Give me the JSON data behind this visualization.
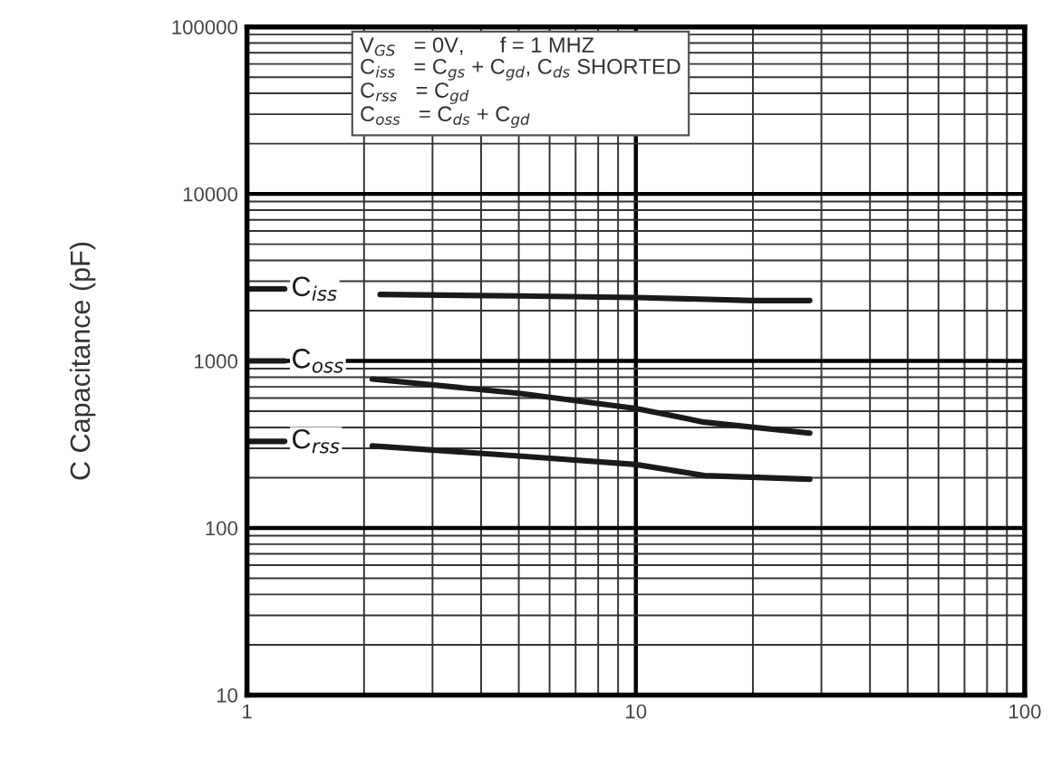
{
  "chart_data": {
    "type": "line",
    "ylabel": "C Capacitance (pF)",
    "log": "xy",
    "grid": true,
    "legend": false,
    "marker": "none",
    "line_style": "solid",
    "xlim": [
      1,
      100
    ],
    "xticks": [
      1,
      10,
      100
    ],
    "ylim": [
      10,
      100000
    ],
    "yticks": [
      10,
      100,
      1000,
      10000,
      100000
    ],
    "series": [
      {
        "name": "C$_{iss}$",
        "color": "#1a1a1a",
        "x": [
          1,
          1.25,
          1.6,
          2.2,
          5,
          10,
          20,
          28
        ],
        "values": [
          2700,
          2700,
          null,
          2500,
          2450,
          2400,
          2300,
          2300
        ]
      },
      {
        "name": "C$_{oss}$",
        "color": "#1a1a1a",
        "x": [
          1,
          1.25,
          1.6,
          2.1,
          5,
          10,
          15,
          28
        ],
        "values": [
          1000,
          1000,
          null,
          780,
          640,
          520,
          430,
          370
        ]
      },
      {
        "name": "C$_{rss}$",
        "color": "#1a1a1a",
        "x": [
          1,
          1.25,
          1.6,
          2.1,
          5,
          10,
          15,
          28
        ],
        "values": [
          330,
          330,
          null,
          310,
          270,
          240,
          206,
          196
        ]
      }
    ],
    "annotations": [
      "V$_{GS}$   = 0V,      f = 1 MHZ\nC$_{iss}$   = C$_{gs}$ + C$_{gd}$, C$_{ds}$ SHORTED\nC$_{rss}$   = C$_{gd}$\nC$_{oss}$   = C$_{ds}$ + C$_{gd}$"
    ]
  }
}
